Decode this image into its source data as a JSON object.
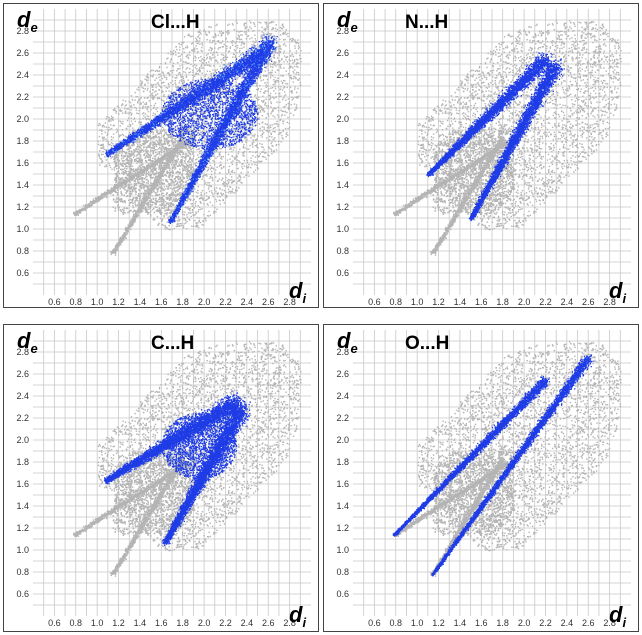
{
  "figure": {
    "de_label": "d",
    "de_sub": "e",
    "di_label": "d",
    "di_sub": "i"
  },
  "colors": {
    "background_points": "#b4b4b4",
    "highlight_points": "#1f3ce6",
    "highlight_dense": "#5aa0ff",
    "grid": "#c8c8c8",
    "frame": "#444444"
  },
  "chart_data": [
    {
      "type": "scatter",
      "title": "Cl...H",
      "xlabel": "di",
      "ylabel": "de",
      "xlim": [
        0.4,
        3.0
      ],
      "ylim": [
        0.4,
        3.0
      ],
      "xticks": [
        "0.6",
        "0.8",
        "1.0",
        "1.2",
        "1.4",
        "1.6",
        "1.8",
        "2.0",
        "2.2",
        "2.4",
        "2.6",
        "2.8"
      ],
      "yticks": [
        "0.6",
        "0.8",
        "1.0",
        "1.2",
        "1.4",
        "1.6",
        "1.8",
        "2.0",
        "2.2",
        "2.4",
        "2.6",
        "2.8"
      ],
      "grid": true,
      "highlight_regions": [
        {
          "shape": "spike",
          "from": [
            1.08,
            1.68
          ],
          "to": [
            2.55,
            2.62
          ],
          "width": 0.18
        },
        {
          "shape": "spike",
          "from": [
            1.68,
            1.07
          ],
          "to": [
            2.62,
            2.72
          ],
          "width": 0.16
        },
        {
          "shape": "blob",
          "center": [
            2.05,
            2.05
          ],
          "rx": 0.45,
          "ry": 0.32
        }
      ]
    },
    {
      "type": "scatter",
      "title": "N...H",
      "xlabel": "di",
      "ylabel": "de",
      "xlim": [
        0.4,
        3.0
      ],
      "ylim": [
        0.4,
        3.0
      ],
      "xticks": [
        "0.6",
        "0.8",
        "1.0",
        "1.2",
        "1.4",
        "1.6",
        "1.8",
        "2.0",
        "2.2",
        "2.4",
        "2.6",
        "2.8"
      ],
      "yticks": [
        "0.6",
        "0.8",
        "1.0",
        "1.2",
        "1.4",
        "1.6",
        "1.8",
        "2.0",
        "2.2",
        "2.4",
        "2.6",
        "2.8"
      ],
      "grid": true,
      "highlight_regions": [
        {
          "shape": "spike",
          "from": [
            1.1,
            1.5
          ],
          "to": [
            2.2,
            2.55
          ],
          "width": 0.16
        },
        {
          "shape": "spike",
          "from": [
            1.5,
            1.1
          ],
          "to": [
            2.3,
            2.5
          ],
          "width": 0.16
        }
      ]
    },
    {
      "type": "scatter",
      "title": "C...H",
      "xlabel": "di",
      "ylabel": "de",
      "xlim": [
        0.4,
        3.0
      ],
      "ylim": [
        0.4,
        3.0
      ],
      "xticks": [
        "0.6",
        "0.8",
        "1.0",
        "1.2",
        "1.4",
        "1.6",
        "1.8",
        "2.0",
        "2.2",
        "2.4",
        "2.6",
        "2.8"
      ],
      "yticks": [
        "0.6",
        "0.8",
        "1.0",
        "1.2",
        "1.4",
        "1.6",
        "1.8",
        "2.0",
        "2.2",
        "2.4",
        "2.6",
        "2.8"
      ],
      "grid": true,
      "highlight_regions": [
        {
          "shape": "spike",
          "from": [
            1.07,
            1.63
          ],
          "to": [
            2.3,
            2.35
          ],
          "width": 0.2
        },
        {
          "shape": "spike",
          "from": [
            1.63,
            1.07
          ],
          "to": [
            2.35,
            2.3
          ],
          "width": 0.2
        },
        {
          "shape": "blob",
          "center": [
            1.95,
            1.95
          ],
          "rx": 0.35,
          "ry": 0.3
        }
      ]
    },
    {
      "type": "scatter",
      "title": "O...H",
      "xlabel": "di",
      "ylabel": "de",
      "xlim": [
        0.4,
        3.0
      ],
      "ylim": [
        0.4,
        3.0
      ],
      "xticks": [
        "0.6",
        "0.8",
        "1.0",
        "1.2",
        "1.4",
        "1.6",
        "1.8",
        "2.0",
        "2.2",
        "2.4",
        "2.6",
        "2.8"
      ],
      "yticks": [
        "0.6",
        "0.8",
        "1.0",
        "1.2",
        "1.4",
        "1.6",
        "1.8",
        "2.0",
        "2.2",
        "2.4",
        "2.6",
        "2.8"
      ],
      "grid": true,
      "highlight_regions": [
        {
          "shape": "spike",
          "from": [
            0.78,
            1.14
          ],
          "to": [
            2.2,
            2.55
          ],
          "width": 0.1
        },
        {
          "shape": "spike",
          "from": [
            1.14,
            0.78
          ],
          "to": [
            2.6,
            2.75
          ],
          "width": 0.1
        }
      ]
    }
  ]
}
